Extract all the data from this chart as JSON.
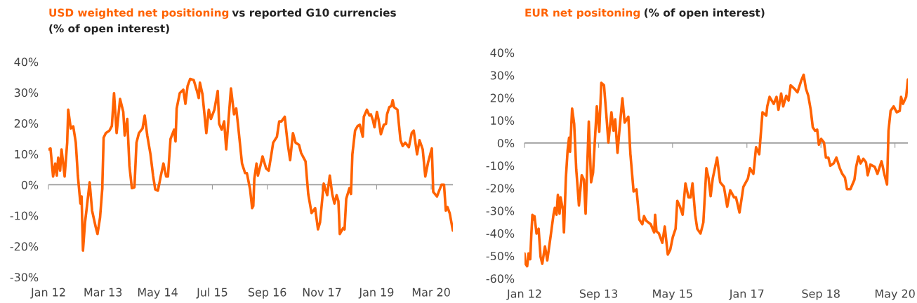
{
  "chart_data": [
    {
      "type": "line",
      "title": "USD weighted net positioning",
      "subtitle": "vs reported G10 currencies\n(% of open interest)",
      "series": [
        {
          "color": "#ff6200",
          "x": [
            "2012-01-01",
            "2012-01-17",
            "2012-02-06",
            "2012-02-23",
            "2012-03-06",
            "2012-03-17",
            "2012-04-01",
            "2012-04-12",
            "2012-04-23",
            "2012-05-06",
            "2012-05-26",
            "2012-06-03",
            "2012-06-23",
            "2012-07-12",
            "2012-08-01",
            "2012-08-17",
            "2012-09-06",
            "2012-09-15",
            "2012-09-26",
            "2012-10-12",
            "2012-10-23",
            "2012-11-17",
            "2012-12-06",
            "2013-01-03",
            "2013-01-17",
            "2013-02-06",
            "2013-02-23",
            "2013-03-06",
            "2013-03-23",
            "2013-04-20",
            "2013-05-09",
            "2013-05-26",
            "2013-06-15",
            "2013-07-12",
            "2013-08-06",
            "2013-08-17",
            "2013-09-06",
            "2013-09-23",
            "2013-10-12",
            "2013-11-01",
            "2013-11-17",
            "2013-12-06",
            "2014-01-03",
            "2014-01-20",
            "2014-02-09",
            "2014-03-06",
            "2014-03-26",
            "2014-04-12",
            "2014-05-03",
            "2014-05-26",
            "2014-06-15",
            "2014-07-06",
            "2014-07-20",
            "2014-08-09",
            "2014-09-06",
            "2014-09-17",
            "2014-09-26",
            "2014-10-20",
            "2014-11-17",
            "2014-12-03",
            "2014-12-20",
            "2015-01-09",
            "2015-02-06",
            "2015-03-03",
            "2015-03-17",
            "2015-03-26",
            "2015-04-15",
            "2015-05-15",
            "2015-06-03",
            "2015-06-20",
            "2015-07-17",
            "2015-08-12",
            "2015-08-23",
            "2015-09-12",
            "2015-10-01",
            "2015-10-17",
            "2015-11-23",
            "2015-12-17",
            "2016-01-03",
            "2016-01-20",
            "2016-02-17",
            "2016-03-12",
            "2016-03-26",
            "2016-04-20",
            "2016-05-06",
            "2016-05-15",
            "2016-05-23",
            "2016-06-09",
            "2016-06-20",
            "2016-07-09",
            "2016-07-26",
            "2016-08-23",
            "2016-09-12",
            "2016-10-06",
            "2016-10-17",
            "2016-11-15",
            "2016-12-03",
            "2016-12-20",
            "2017-01-15",
            "2017-02-06",
            "2017-02-26",
            "2017-03-20",
            "2017-04-09",
            "2017-05-06",
            "2017-05-23",
            "2017-06-26",
            "2017-07-17",
            "2017-08-12",
            "2017-09-09",
            "2017-10-01",
            "2017-10-17",
            "2017-11-15",
            "2017-12-12",
            "2018-01-01",
            "2018-01-20",
            "2018-02-06",
            "2018-02-23",
            "2018-03-09",
            "2018-03-20",
            "2018-04-15",
            "2018-04-26",
            "2018-05-09",
            "2018-06-03",
            "2018-06-15",
            "2018-06-26",
            "2018-07-17",
            "2018-08-06",
            "2018-08-23",
            "2018-09-15",
            "2018-09-23",
            "2018-10-17",
            "2018-11-06",
            "2018-11-17",
            "2018-12-03",
            "2018-12-15",
            "2019-01-03",
            "2019-01-15",
            "2019-02-03",
            "2019-02-26",
            "2019-03-15",
            "2019-03-23",
            "2019-04-09",
            "2019-04-26",
            "2019-05-06",
            "2019-05-17",
            "2019-06-12",
            "2019-07-06",
            "2019-07-23",
            "2019-08-12",
            "2019-09-09",
            "2019-10-01",
            "2019-10-17",
            "2019-11-12",
            "2019-12-01",
            "2019-12-26",
            "2020-01-15",
            "2020-02-06",
            "2020-03-06",
            "2020-03-17",
            "2020-04-15",
            "2020-05-20",
            "2020-06-09",
            "2020-06-23",
            "2020-07-06",
            "2020-07-23",
            "2020-08-17"
          ],
          "values": [
            11.5,
            11.8,
            2.7,
            6.9,
            3,
            8.8,
            4.6,
            11.5,
            7.6,
            2.7,
            13.7,
            24.4,
            18.3,
            19,
            13.7,
            3,
            -6.1,
            -3.8,
            -21.4,
            -12.2,
            -8.4,
            0.8,
            -8.4,
            -13.7,
            -16,
            -10.7,
            -1.5,
            15.3,
            16.8,
            17.6,
            19.1,
            29.8,
            16.8,
            27.9,
            23.7,
            16,
            21.4,
            6.1,
            -1.1,
            -0.8,
            13.7,
            16.8,
            18.3,
            22.5,
            16,
            9.9,
            3,
            -1.5,
            -1.9,
            3,
            6.9,
            2.7,
            2.7,
            14.9,
            17.9,
            14.1,
            24.8,
            29.8,
            30.9,
            26.3,
            32.1,
            34.4,
            34,
            30.5,
            28.2,
            33.2,
            29.4,
            16.8,
            24.4,
            21.4,
            24.4,
            30.5,
            19.8,
            17.9,
            20.6,
            11.5,
            31.3,
            22.9,
            24.8,
            18.3,
            6.9,
            3.8,
            3.8,
            -1.5,
            -7.6,
            -6.9,
            1.9,
            6.9,
            3,
            6.1,
            9.2,
            5.3,
            4.6,
            10.7,
            13.7,
            15.6,
            20.6,
            20.6,
            22.1,
            13.7,
            8,
            16.8,
            13.7,
            13,
            10.3,
            7.6,
            -3,
            -9.2,
            -7.6,
            -14.5,
            -12.2,
            0.4,
            -3.4,
            3,
            -3,
            -6.1,
            -3.4,
            -5.3,
            -16,
            -14.1,
            -14.5,
            -4.6,
            -1.1,
            -3,
            9.9,
            17.6,
            19.1,
            19.5,
            15.6,
            22.1,
            24.4,
            22.5,
            22.9,
            21,
            18.7,
            23.7,
            21.4,
            16.4,
            19.5,
            19.8,
            22.9,
            25.2,
            25.6,
            27.5,
            25.2,
            24.4,
            14.5,
            12.6,
            13.7,
            12.2,
            16.8,
            17.6,
            9.9,
            14.5,
            11.5,
            2.7,
            7.3,
            11.8,
            -2.3,
            -3.8,
            0,
            0,
            -8.4,
            -7.3,
            -9.2,
            -14.9
          ]
        }
      ],
      "xlim": [
        "2012-01-01",
        "2020-08-17"
      ],
      "xticks": [
        {
          "value": "2012-01-01",
          "label": "Jan 12"
        },
        {
          "value": "2013-03-01",
          "label": "Mar 13"
        },
        {
          "value": "2014-05-01",
          "label": "May 14"
        },
        {
          "value": "2015-07-01",
          "label": "Jul 15"
        },
        {
          "value": "2016-09-01",
          "label": "Sep 16"
        },
        {
          "value": "2017-11-01",
          "label": "Nov 17"
        },
        {
          "value": "2019-01-01",
          "label": "Jan 19"
        },
        {
          "value": "2020-03-01",
          "label": "Mar 20"
        }
      ],
      "ylim": [
        -30,
        40
      ],
      "yticks": [
        {
          "value": -30,
          "label": "-30%"
        },
        {
          "value": -20,
          "label": "-20%"
        },
        {
          "value": -10,
          "label": "-10%"
        },
        {
          "value": 0,
          "label": "0%"
        },
        {
          "value": 10,
          "label": "10%"
        },
        {
          "value": 20,
          "label": "20%"
        },
        {
          "value": 30,
          "label": "30%"
        },
        {
          "value": 40,
          "label": "40%"
        }
      ],
      "ref_lines": [
        {
          "axis": "y",
          "value": 0,
          "color": "#9a9a9a"
        }
      ],
      "line_style": "solid",
      "marker": "none",
      "grid": false,
      "legend": false
    },
    {
      "type": "line",
      "title": "EUR net positoning",
      "subtitle": "(% of open interest)",
      "series": [
        {
          "color": "#ff6200",
          "x": [
            "2012-01-01",
            "2012-01-09",
            "2012-01-23",
            "2012-02-03",
            "2012-02-17",
            "2012-02-26",
            "2012-03-06",
            "2012-03-15",
            "2012-03-23",
            "2012-04-09",
            "2012-04-26",
            "2012-05-12",
            "2012-05-26",
            "2012-06-17",
            "2012-07-06",
            "2012-08-03",
            "2012-08-26",
            "2012-09-06",
            "2012-09-20",
            "2012-10-01",
            "2012-10-15",
            "2012-10-23",
            "2012-11-12",
            "2012-11-20",
            "2012-12-06",
            "2012-12-20",
            "2013-01-01",
            "2013-01-09",
            "2013-01-26",
            "2013-02-12",
            "2013-03-01",
            "2013-03-12",
            "2013-03-23",
            "2013-04-15",
            "2013-05-03",
            "2013-05-17",
            "2013-06-12",
            "2013-07-01",
            "2013-07-17",
            "2013-08-17",
            "2013-09-06",
            "2013-09-23",
            "2013-10-15",
            "2013-11-03",
            "2013-11-20",
            "2013-12-15",
            "2014-01-01",
            "2014-01-15",
            "2014-02-03",
            "2014-02-20",
            "2014-03-15",
            "2014-04-03",
            "2014-05-03",
            "2014-05-20",
            "2014-06-15",
            "2014-07-09",
            "2014-08-01",
            "2014-08-26",
            "2014-09-09",
            "2014-09-26",
            "2014-11-03",
            "2014-12-01",
            "2014-12-09",
            "2014-12-20",
            "2015-01-09",
            "2015-02-06",
            "2015-02-26",
            "2015-03-23",
            "2015-04-12",
            "2015-05-03",
            "2015-05-26",
            "2015-06-09",
            "2015-07-01",
            "2015-07-23",
            "2015-08-15",
            "2015-09-09",
            "2015-09-26",
            "2015-10-12",
            "2015-11-03",
            "2015-11-20",
            "2015-12-17",
            "2016-01-09",
            "2016-02-03",
            "2016-02-20",
            "2016-03-09",
            "2016-03-26",
            "2016-05-01",
            "2016-05-26",
            "2016-06-26",
            "2016-07-23",
            "2016-08-17",
            "2016-09-17",
            "2016-10-03",
            "2016-11-01",
            "2016-12-03",
            "2017-01-09",
            "2017-01-26",
            "2017-02-23",
            "2017-03-17",
            "2017-04-12",
            "2017-05-09",
            "2017-06-09",
            "2017-06-17",
            "2017-07-06",
            "2017-08-09",
            "2017-09-01",
            "2017-09-17",
            "2017-10-09",
            "2017-10-26",
            "2017-11-20",
            "2017-12-09",
            "2017-12-26",
            "2018-01-26",
            "2018-02-20",
            "2018-03-23",
            "2018-04-12",
            "2018-05-01",
            "2018-05-20",
            "2018-06-09",
            "2018-06-26",
            "2018-07-15",
            "2018-08-01",
            "2018-08-15",
            "2018-09-03",
            "2018-09-26",
            "2018-10-12",
            "2018-11-01",
            "2018-11-17",
            "2018-12-15",
            "2019-01-06",
            "2019-02-03",
            "2019-02-23",
            "2019-03-17",
            "2019-04-03",
            "2019-05-01",
            "2019-06-03",
            "2019-06-17",
            "2019-07-06",
            "2019-07-23",
            "2019-08-15",
            "2019-09-06",
            "2019-09-20",
            "2019-10-12",
            "2019-11-17",
            "2019-12-09",
            "2020-01-12",
            "2020-02-06",
            "2020-02-26",
            "2020-03-09",
            "2020-03-26",
            "2020-04-20",
            "2020-05-15",
            "2020-06-09",
            "2020-06-20",
            "2020-07-06",
            "2020-08-01",
            "2020-08-15"
          ],
          "values": [
            -48.9,
            -53.5,
            -54.6,
            -48.9,
            -51.5,
            -40.6,
            -31.8,
            -33.9,
            -32.4,
            -40.1,
            -38,
            -50.4,
            -53.5,
            -45.8,
            -52,
            -41.1,
            -31.8,
            -28.7,
            -31.8,
            -23,
            -31.3,
            -24.1,
            -29.8,
            -39.6,
            -15.3,
            -3.4,
            2.3,
            -3.9,
            15.2,
            8.5,
            -11.7,
            -19.4,
            -27.7,
            -14.3,
            -16.3,
            -31.3,
            9.5,
            -17.4,
            -13.2,
            16.2,
            4.9,
            26.6,
            25.5,
            12.6,
            0.2,
            13.6,
            5.4,
            10.5,
            -4.4,
            6.4,
            19.8,
            9,
            11.6,
            -5,
            -21.5,
            -20.5,
            -33.9,
            -36,
            -32.4,
            -34.4,
            -36,
            -39.6,
            -31.8,
            -39.1,
            -40.1,
            -44.2,
            -37,
            -49.4,
            -47.3,
            -41.7,
            -38,
            -25.6,
            -28.2,
            -31.8,
            -17.9,
            -24.1,
            -24.1,
            -17.9,
            -31.8,
            -38,
            -40.1,
            -35.2,
            -11.2,
            -15.3,
            -23.6,
            -15.8,
            -6.5,
            -17.4,
            -19.4,
            -28.2,
            -21,
            -24.1,
            -24.1,
            -30.8,
            -19.4,
            -15.8,
            -11.2,
            -13.7,
            -1.9,
            -5,
            13.6,
            12.1,
            16.2,
            20.4,
            17.3,
            20.4,
            14.7,
            21.9,
            16.2,
            20.9,
            18.8,
            25.5,
            24,
            22.4,
            27.6,
            30.2,
            24,
            20.9,
            14.7,
            6.9,
            5.4,
            5.9,
            -0.8,
            1.8,
            0.2,
            -6.5,
            -6.5,
            -10.1,
            -9,
            -6.5,
            -11.2,
            -13.7,
            -15.3,
            -20.5,
            -20.5,
            -16.3,
            -10.6,
            -6,
            -9.1,
            -7,
            -8.6,
            -14.3,
            -9.6,
            -10.6,
            -13.7,
            -8.1,
            -14.3,
            -18.4,
            5.4,
            14.2,
            16.2,
            13.6,
            14.2,
            20.4,
            17.3,
            20.4,
            28.1
          ]
        }
      ],
      "xlim": [
        "2012-01-01",
        "2020-08-15"
      ],
      "xticks": [
        {
          "value": "2012-01-01",
          "label": "Jan 12"
        },
        {
          "value": "2013-09-01",
          "label": "Sep 13"
        },
        {
          "value": "2015-05-01",
          "label": "May 15"
        },
        {
          "value": "2017-01-01",
          "label": "Jan 17"
        },
        {
          "value": "2018-09-01",
          "label": "Sep 18"
        },
        {
          "value": "2020-05-01",
          "label": "May 20"
        }
      ],
      "ylim": [
        -60,
        40
      ],
      "yticks": [
        {
          "value": -60,
          "label": "-60%"
        },
        {
          "value": -50,
          "label": "-50%"
        },
        {
          "value": -40,
          "label": "-40%"
        },
        {
          "value": -30,
          "label": "-30%"
        },
        {
          "value": -20,
          "label": "-20%"
        },
        {
          "value": -10,
          "label": "-10%"
        },
        {
          "value": 0,
          "label": "0%"
        },
        {
          "value": 10,
          "label": "10%"
        },
        {
          "value": 20,
          "label": "20%"
        },
        {
          "value": 30,
          "label": "30%"
        },
        {
          "value": 40,
          "label": "40%"
        }
      ],
      "ref_lines": [
        {
          "axis": "y",
          "value": 0,
          "color": "#9a9a9a"
        }
      ],
      "line_style": "solid",
      "marker": "none",
      "grid": false,
      "legend": false
    }
  ]
}
